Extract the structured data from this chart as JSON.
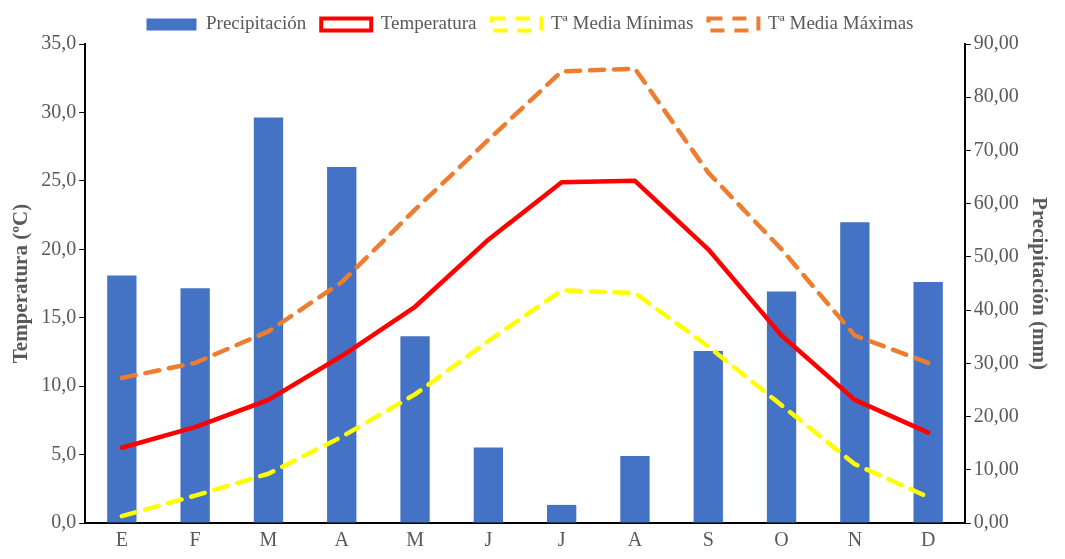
{
  "chart_data": {
    "type": "bar",
    "categories": [
      "E",
      "F",
      "M",
      "A",
      "M",
      "J",
      "J",
      "A",
      "S",
      "O",
      "N",
      "D"
    ],
    "series": [
      {
        "name": "Precipitación",
        "axis": "y2",
        "color": "#4472c4",
        "values": [
          46.5,
          44.1,
          76.2,
          66.9,
          35.1,
          14.2,
          3.4,
          12.6,
          32.3,
          43.5,
          56.5,
          45.3
        ]
      },
      {
        "name": "Temperatura",
        "type": "line",
        "color": "#ff0000",
        "line_style": "solid",
        "values": [
          5.5,
          7.0,
          9.0,
          12.2,
          15.8,
          20.7,
          24.9,
          25.0,
          20.0,
          13.7,
          9.0,
          6.6
        ]
      },
      {
        "name": "Tª Media Mínimas",
        "type": "line",
        "color": "#ffff00",
        "line_style": "dashed",
        "values": [
          0.5,
          2.0,
          3.6,
          6.3,
          9.4,
          13.3,
          17.0,
          16.8,
          12.9,
          8.6,
          4.3,
          1.9
        ]
      },
      {
        "name": "Tª Media Máximas",
        "type": "line",
        "color": "#ed7d31",
        "line_style": "dashed",
        "values": [
          10.6,
          11.7,
          14.0,
          17.6,
          22.9,
          28.0,
          33.0,
          33.2,
          25.6,
          20.0,
          13.7,
          11.7
        ]
      }
    ],
    "ylabel": "Temperatura (ºC)",
    "y2label": "Precipitación (mm)",
    "ylim": [
      0,
      35
    ],
    "yticks": [
      {
        "value": 0,
        "label": "0,0"
      },
      {
        "value": 5,
        "label": "5,0"
      },
      {
        "value": 10,
        "label": "10,0"
      },
      {
        "value": 15,
        "label": "15,0"
      },
      {
        "value": 20,
        "label": "20,0"
      },
      {
        "value": 25,
        "label": "25,0"
      },
      {
        "value": 30,
        "label": "30,0"
      },
      {
        "value": 35,
        "label": "35,0"
      }
    ],
    "y2lim": [
      0,
      90
    ],
    "y2ticks": [
      {
        "value": 0,
        "label": "0,00"
      },
      {
        "value": 10,
        "label": "10,00"
      },
      {
        "value": 20,
        "label": "20,00"
      },
      {
        "value": 30,
        "label": "30,00"
      },
      {
        "value": 40,
        "label": "40,00"
      },
      {
        "value": 50,
        "label": "50,00"
      },
      {
        "value": 60,
        "label": "60,00"
      },
      {
        "value": 70,
        "label": "70,00"
      },
      {
        "value": 80,
        "label": "80,00"
      },
      {
        "value": 90,
        "label": "90,00"
      }
    ],
    "legend": "top",
    "marker": "none",
    "grid": false
  }
}
